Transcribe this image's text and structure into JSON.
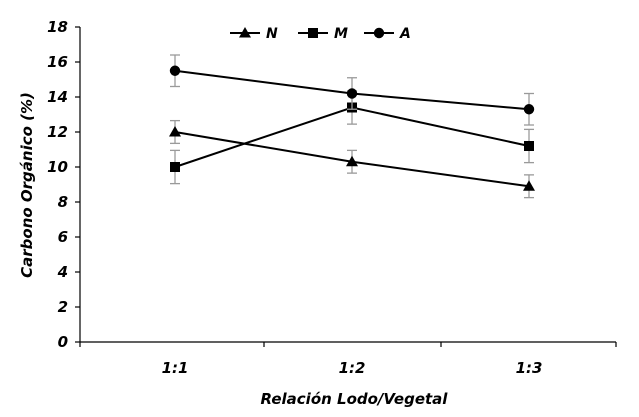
{
  "chart_data": {
    "type": "line",
    "title": "",
    "xlabel": "Relación Lodo/Vegetal",
    "ylabel": "Carbono Orgánico (%)",
    "categories": [
      "1:1",
      "1:2",
      "1:3"
    ],
    "ylim": [
      0,
      18
    ],
    "yticks": [
      0,
      2,
      4,
      6,
      8,
      10,
      12,
      14,
      16,
      18
    ],
    "grid": false,
    "legend_position": "top",
    "series": [
      {
        "name": "N",
        "marker": "triangle",
        "values": [
          12.0,
          10.3,
          8.9
        ],
        "errors": [
          0.65,
          0.65,
          0.65
        ]
      },
      {
        "name": "M",
        "marker": "square",
        "values": [
          10.0,
          13.4,
          11.2
        ],
        "errors": [
          0.95,
          0.95,
          0.95
        ]
      },
      {
        "name": "A",
        "marker": "circle",
        "values": [
          15.5,
          14.2,
          13.3
        ],
        "errors": [
          0.9,
          0.9,
          0.9
        ]
      }
    ],
    "colors": {
      "line": "#000000",
      "error_bar": "#9a9a9a"
    }
  }
}
